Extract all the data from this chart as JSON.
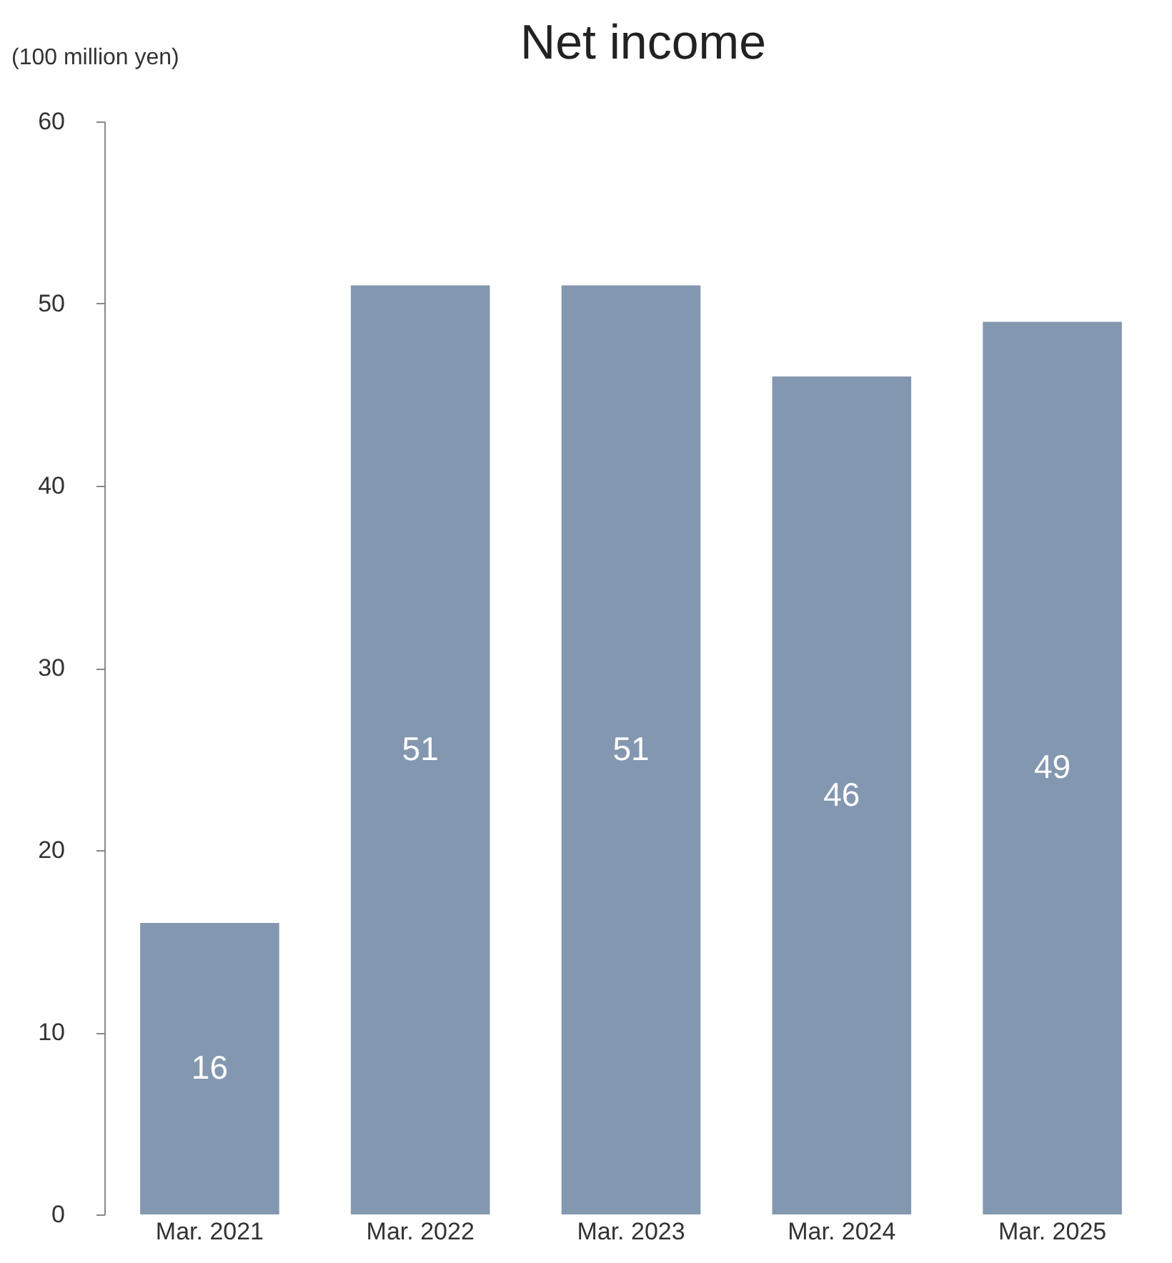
{
  "chart_data": {
    "type": "bar",
    "title": "Net income",
    "ylabel": "(100 million yen)",
    "categories": [
      "Mar. 2021",
      "Mar. 2022",
      "Mar. 2023",
      "Mar. 2024",
      "Mar. 2025"
    ],
    "values": [
      16,
      51,
      51,
      46,
      49
    ],
    "color": "#8497b0",
    "ylim": [
      0,
      60
    ],
    "yticks": [
      0,
      10,
      20,
      30,
      40,
      50,
      60
    ],
    "grid": false,
    "data_labels": true
  }
}
